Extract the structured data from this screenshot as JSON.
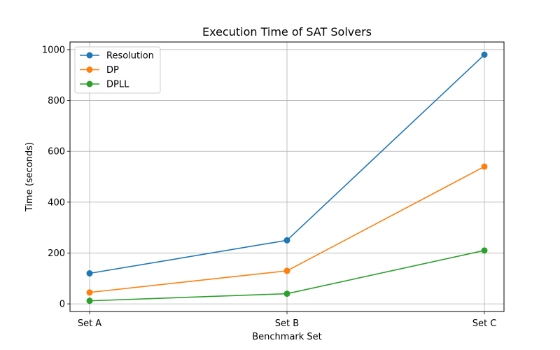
{
  "chart_data": {
    "type": "line",
    "title": "Execution Time of SAT Solvers",
    "xlabel": "Benchmark Set",
    "ylabel": "Time (seconds)",
    "categories": [
      "Set A",
      "Set B",
      "Set C"
    ],
    "ylim": [
      -30,
      1030
    ],
    "yticks": [
      0,
      200,
      400,
      600,
      800,
      1000
    ],
    "grid": true,
    "legend_position": "top-left",
    "marker": "circle",
    "series": [
      {
        "name": "Resolution",
        "color": "#1f77b4",
        "values": [
          120,
          250,
          980
        ]
      },
      {
        "name": "DP",
        "color": "#ff7f0e",
        "values": [
          45,
          130,
          540
        ]
      },
      {
        "name": "DPLL",
        "color": "#2ca02c",
        "values": [
          12,
          40,
          210
        ]
      }
    ]
  }
}
